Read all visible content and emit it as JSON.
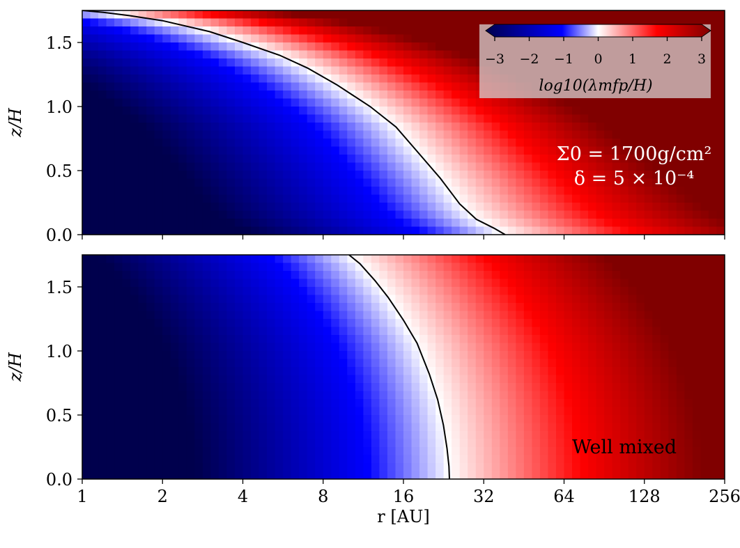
{
  "figure": {
    "xlabel": "r [AU]",
    "colormap": {
      "stops": [
        "#00004d",
        "#0000ff",
        "#ffffff",
        "#ff0000",
        "#800000"
      ],
      "range": [
        -3,
        3
      ]
    }
  },
  "chart_data": [
    {
      "type": "heatmap",
      "panel": "top",
      "title": "",
      "xlabel": "",
      "ylabel": "z/H",
      "xscale": "log2",
      "xlim": [
        1,
        256
      ],
      "ylim": [
        0,
        1.75
      ],
      "xticks": [
        1,
        2,
        4,
        8,
        16,
        32,
        64,
        128,
        256
      ],
      "yticks": [
        0.0,
        0.5,
        1.0,
        1.5
      ],
      "ytick_labels": [
        "0.0",
        "0.5",
        "1.0",
        "1.5"
      ],
      "value_label": "log10(λmfp/H)",
      "vmin": -3,
      "vmax": 3,
      "field_description_samples": [
        {
          "r": 1,
          "z": 0.0,
          "v": -3.0
        },
        {
          "r": 1,
          "z": 1.5,
          "v": -1.1
        },
        {
          "r": 4,
          "z": 0.0,
          "v": -2.0
        },
        {
          "r": 38,
          "z": 0.0,
          "v": 0.0
        },
        {
          "r": 256,
          "z": 0.0,
          "v": 1.8
        },
        {
          "r": 256,
          "z": 1.75,
          "v": 3.0
        }
      ],
      "contour_level": 0,
      "contour": {
        "r": [
          1.0,
          1.2,
          1.5,
          2.0,
          3.0,
          4.0,
          5.5,
          7.0,
          9.0,
          12.0,
          15.0,
          18.0,
          22.0,
          26.0,
          30.0,
          35.0,
          38.5
        ],
        "z": [
          1.75,
          1.735,
          1.71,
          1.67,
          1.585,
          1.5,
          1.4,
          1.3,
          1.17,
          1.0,
          0.84,
          0.65,
          0.44,
          0.24,
          0.12,
          0.05,
          0.0
        ]
      },
      "annotations": [
        "Σ0 = 1700g/cm²",
        "δ = 5 × 10⁻⁴"
      ],
      "colorbar": {
        "label": "log10(λmfp/H)",
        "ticks": [
          -3,
          -2,
          -1,
          0,
          1,
          2,
          3
        ],
        "tick_labels": [
          "−3",
          "−2",
          "−1",
          "0",
          "1",
          "2",
          "3"
        ],
        "placement": "top-right",
        "extend": "both"
      }
    },
    {
      "type": "heatmap",
      "panel": "bottom",
      "title": "",
      "xlabel": "r [AU]",
      "ylabel": "z/H",
      "xscale": "log2",
      "xlim": [
        1,
        256
      ],
      "ylim": [
        0,
        1.75
      ],
      "xticks": [
        1,
        2,
        4,
        8,
        16,
        32,
        64,
        128,
        256
      ],
      "xtick_labels": [
        "1",
        "2",
        "4",
        "8",
        "16",
        "32",
        "64",
        "128",
        "256"
      ],
      "yticks": [
        0.0,
        0.5,
        1.0,
        1.5
      ],
      "ytick_labels": [
        "0.0",
        "0.5",
        "1.0",
        "1.5"
      ],
      "value_label": "log10(λmfp/H)",
      "vmin": -3,
      "vmax": 3,
      "contour_level": 0,
      "contour": {
        "r": [
          10.0,
          11.0,
          12.5,
          14.0,
          16.0,
          18.0,
          20.0,
          21.5,
          22.6,
          23.3,
          23.7,
          23.8
        ],
        "z": [
          1.75,
          1.68,
          1.55,
          1.42,
          1.24,
          1.06,
          0.82,
          0.62,
          0.42,
          0.24,
          0.1,
          0.0
        ]
      },
      "annotations": [
        "Well mixed"
      ]
    }
  ]
}
